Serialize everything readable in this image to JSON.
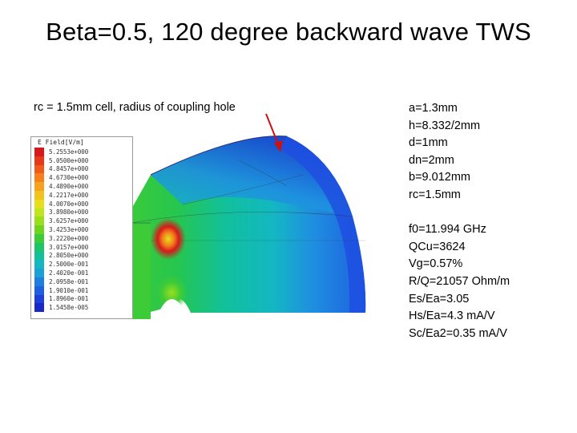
{
  "slide": {
    "title": "Beta=0.5, 120 degree backward wave TWS",
    "subtitle": "rc = 1.5mm cell, radius of coupling hole"
  },
  "parameters": {
    "geometry": [
      "a=1.3mm",
      "h=8.332/2mm",
      "d=1mm",
      "dn=2mm",
      "b=9.012mm",
      "rc=1.5mm"
    ],
    "rf": [
      "f0=11.994 GHz",
      "QCu=3624",
      "Vg=0.57%",
      "R/Q=21057 Ohm/m",
      "Es/Ea=3.05",
      "Hs/Ea=4.3 mA/V",
      "Sc/Ea2=0.35 mA/V"
    ]
  },
  "legend": {
    "title": "E Field[V/m]",
    "colors": [
      "#d7191c",
      "#e8381a",
      "#f05a1a",
      "#f5801c",
      "#f7a21f",
      "#f3c21e",
      "#e6df1c",
      "#c2e41c",
      "#9ade1c",
      "#6fd41f",
      "#3ecb38",
      "#1cc56a",
      "#12c09a",
      "#13b7c2",
      "#1a9fd6",
      "#1f7fe0",
      "#1f5fe0",
      "#1e40d8",
      "#1a28c8"
    ],
    "labels": [
      "5.2553e+000",
      "5.0500e+000",
      "4.8457e+000",
      "4.6730e+000",
      "4.4890e+000",
      "4.2217e+000",
      "4.0070e+000",
      "3.8980e+000",
      "3.6257e+000",
      "3.4253e+000",
      "3.2220e+000",
      "3.0157e+000",
      "2.8050e+000",
      "2.5000e-001",
      "2.4020e-001",
      "2.0958e-001",
      "1.9010e-001",
      "1.8960e-001",
      "1.5458e-005"
    ]
  },
  "colors": {
    "background": "#ffffff",
    "text": "#000000",
    "arrow": "#cc1111"
  }
}
